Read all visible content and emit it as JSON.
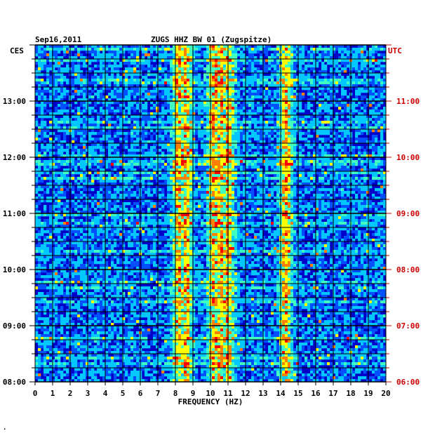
{
  "chart_data": {
    "type": "heatmap",
    "title": "ZUGS HHZ BW 01 (Zugspitze)",
    "date": "Sep16,2011",
    "xlabel": "FREQUENCY (HZ)",
    "xlim": [
      0,
      20
    ],
    "x_ticks": [
      "0",
      "1",
      "2",
      "3",
      "4",
      "5",
      "6",
      "7",
      "8",
      "9",
      "10",
      "11",
      "12",
      "13",
      "14",
      "15",
      "16",
      "17",
      "18",
      "19",
      "20"
    ],
    "left_axis_label": "CES",
    "right_axis_label": "UTC",
    "left_ticks": [
      "08:00",
      "09:00",
      "10:00",
      "11:00",
      "12:00",
      "13:00"
    ],
    "right_ticks": [
      "06:00",
      "07:00",
      "08:00",
      "09:00",
      "10:00",
      "11:00"
    ],
    "time_range_hours_ces": [
      8.0,
      14.0
    ],
    "grid": true,
    "colors": {
      "background_low": "#0000c8",
      "grid": "#000000",
      "text": "#000000",
      "utc_text": "#cc0000",
      "colormap": [
        "#0000b4",
        "#0050ff",
        "#00c8ff",
        "#40ffc0",
        "#ffff00",
        "#ff8000",
        "#ff0000"
      ]
    },
    "notable_bands_hz": [
      8.2,
      8.6,
      10.2,
      10.6,
      11.0,
      14.3
    ],
    "summary": "Spectrogram of seismic signal power versus frequency (0-20 Hz) and time; energy concentrated around 8-11 Hz and a persistent line near 14.3 Hz"
  },
  "footer_mark": "."
}
